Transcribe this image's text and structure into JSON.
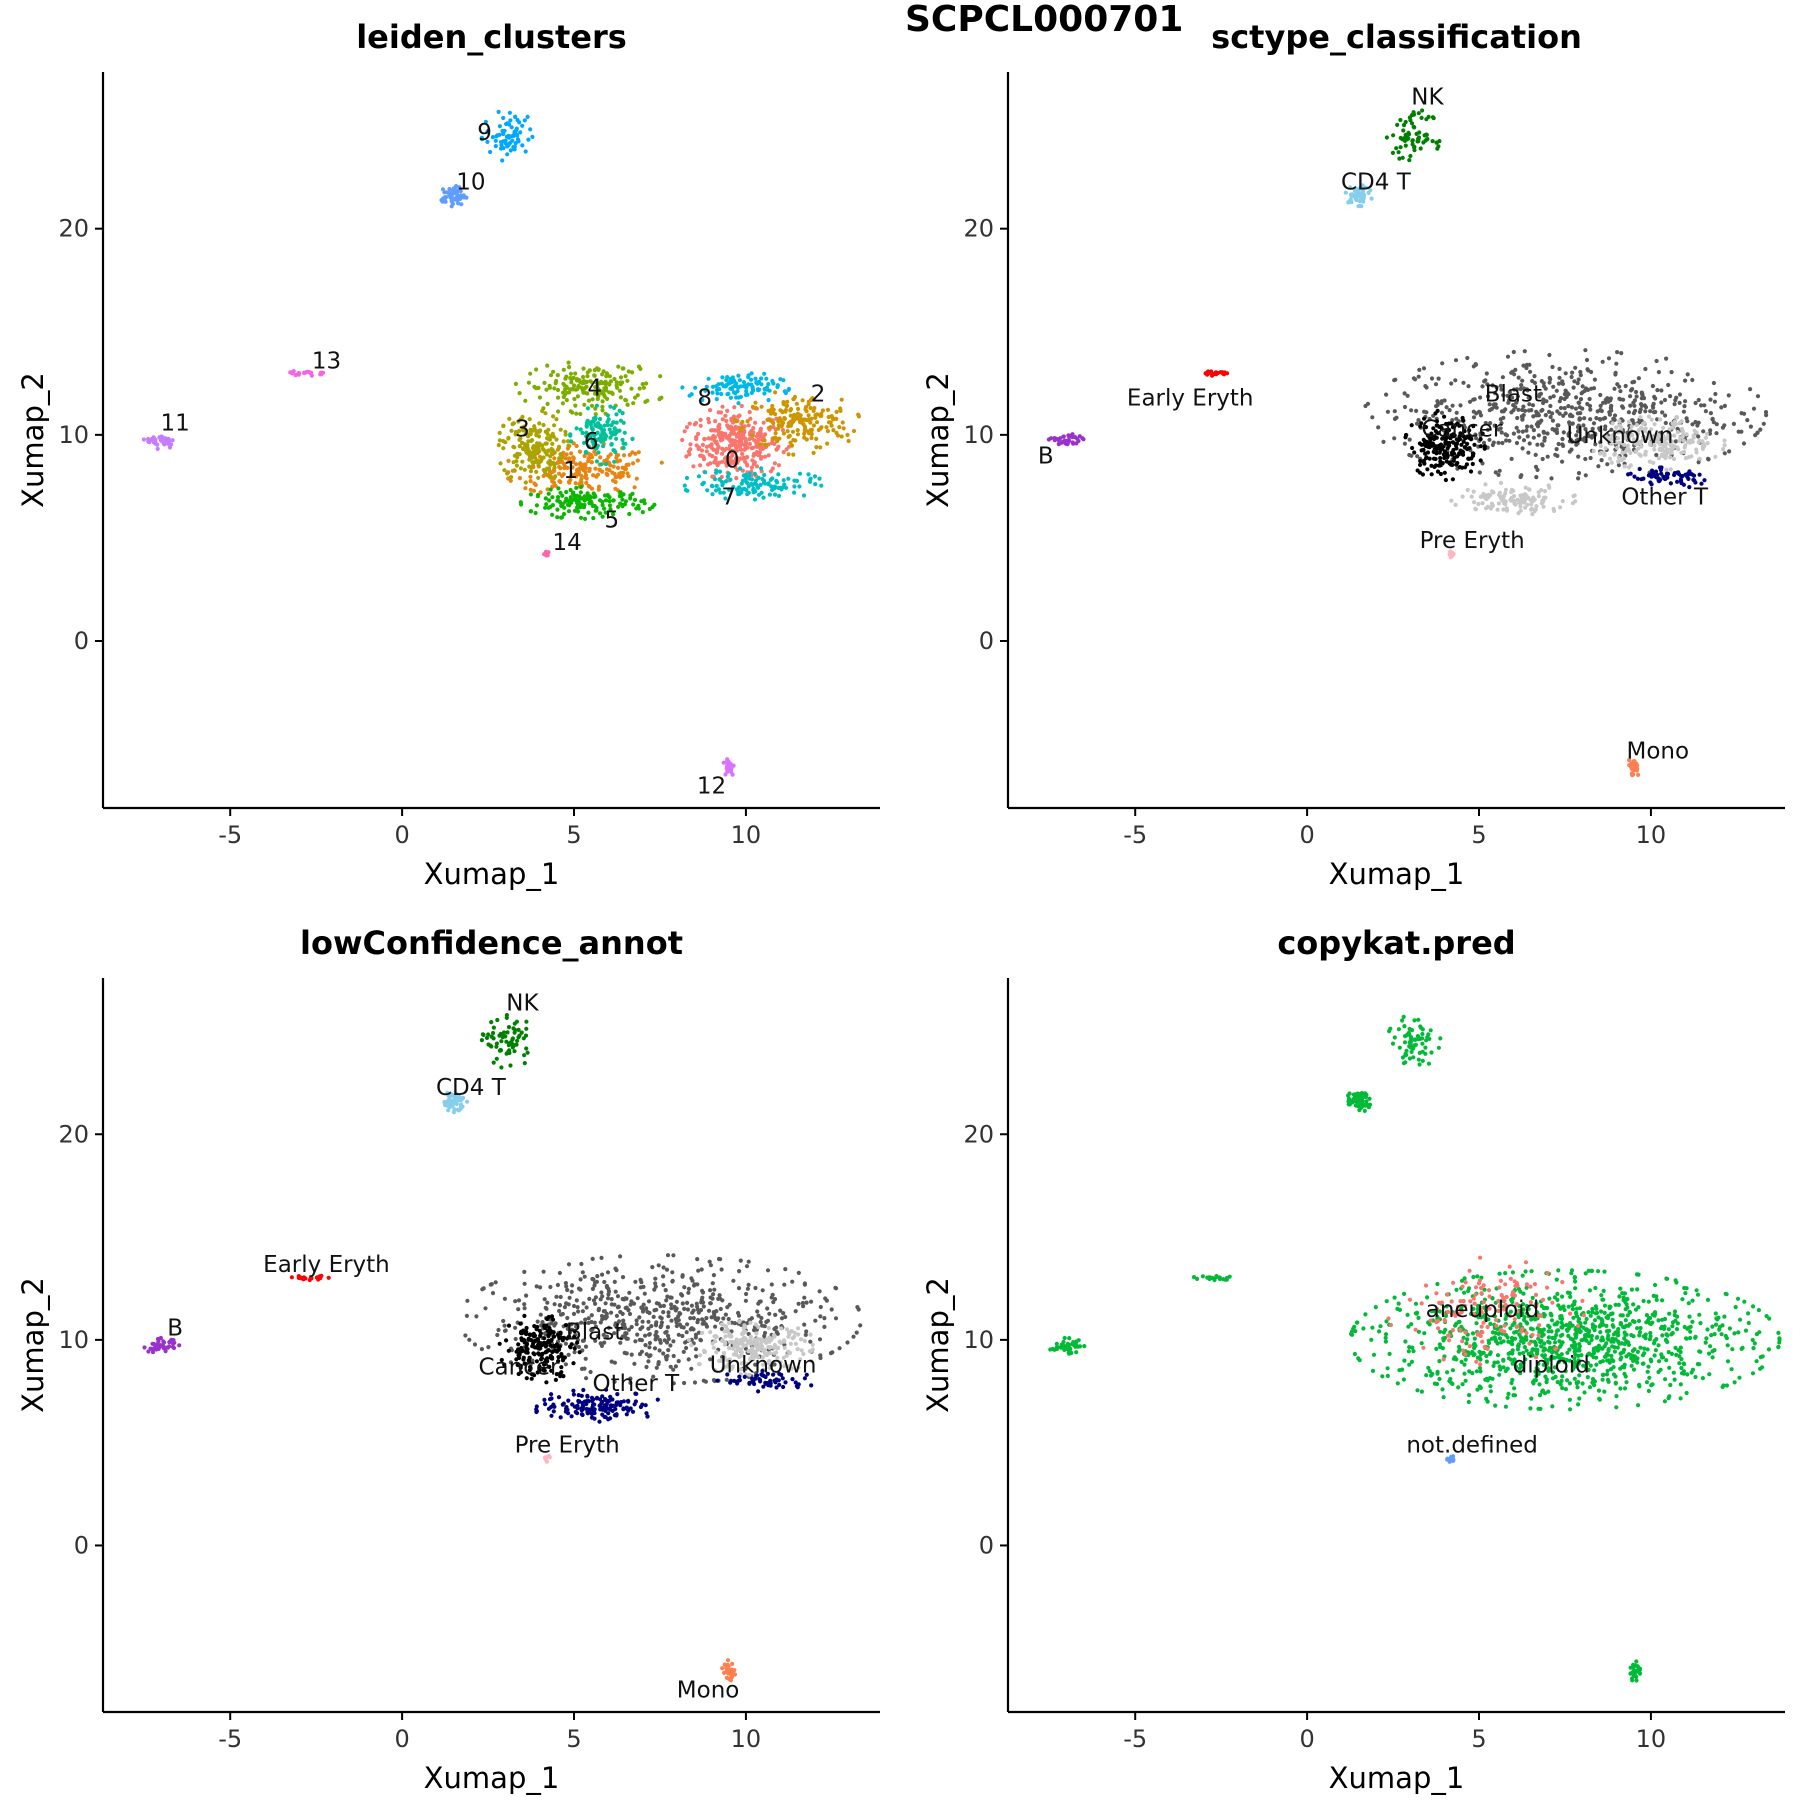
{
  "figure_title": "SCPCL000701",
  "chart_data": [
    {
      "type": "scatter",
      "title": "leiden_clusters",
      "xlabel": "Xumap_1",
      "ylabel": "Xumap_2",
      "xlim": [
        -8.7,
        13.9
      ],
      "ylim": [
        -8.1,
        27.6
      ],
      "xticks": [
        "-5",
        "0",
        "5",
        "10"
      ],
      "yticks": [
        "0",
        "10",
        "20"
      ],
      "clusters": [
        {
          "label": "0",
          "color": "#F8766D",
          "cx": 9.7,
          "cy": 9.6,
          "rx": 1.2,
          "ry": 1.4,
          "n": 320,
          "lx": 9.6,
          "ly": 8.8
        },
        {
          "label": "1",
          "color": "#E68613",
          "cx": 5.3,
          "cy": 8.3,
          "rx": 1.8,
          "ry": 1.0,
          "n": 200,
          "lx": 4.9,
          "ly": 8.3
        },
        {
          "label": "2",
          "color": "#CD9600",
          "cx": 11.5,
          "cy": 10.6,
          "rx": 1.4,
          "ry": 1.2,
          "n": 180,
          "lx": 12.1,
          "ly": 12.0
        },
        {
          "label": "3",
          "color": "#ABA300",
          "cx": 3.8,
          "cy": 9.4,
          "rx": 0.8,
          "ry": 1.4,
          "n": 180,
          "lx": 3.5,
          "ly": 10.3
        },
        {
          "label": "4",
          "color": "#7CAE00",
          "cx": 5.5,
          "cy": 12.3,
          "rx": 1.7,
          "ry": 1.0,
          "n": 180,
          "lx": 5.6,
          "ly": 12.3
        },
        {
          "label": "5",
          "color": "#0CB702",
          "cx": 5.4,
          "cy": 6.7,
          "rx": 1.5,
          "ry": 0.6,
          "n": 150,
          "lx": 6.1,
          "ly": 5.9
        },
        {
          "label": "6",
          "color": "#00C19A",
          "cx": 5.8,
          "cy": 10.0,
          "rx": 0.7,
          "ry": 1.1,
          "n": 120,
          "lx": 5.5,
          "ly": 9.7
        },
        {
          "label": "7",
          "color": "#00BFC4",
          "cx": 10.2,
          "cy": 7.6,
          "rx": 1.6,
          "ry": 0.6,
          "n": 120,
          "lx": 9.5,
          "ly": 7.0
        },
        {
          "label": "8",
          "color": "#00B8E7",
          "cx": 9.7,
          "cy": 12.3,
          "rx": 1.2,
          "ry": 0.6,
          "n": 100,
          "lx": 8.8,
          "ly": 11.8
        },
        {
          "label": "9",
          "color": "#00A9FF",
          "cx": 3.1,
          "cy": 24.5,
          "rx": 0.6,
          "ry": 1.0,
          "n": 70,
          "lx": 2.4,
          "ly": 24.7
        },
        {
          "label": "10",
          "color": "#619CFF",
          "cx": 1.5,
          "cy": 21.6,
          "rx": 0.3,
          "ry": 0.4,
          "n": 60,
          "lx": 2.0,
          "ly": 22.3
        },
        {
          "label": "11",
          "color": "#C77CFF",
          "cx": -7.0,
          "cy": 9.7,
          "rx": 0.4,
          "ry": 0.3,
          "n": 40,
          "lx": -6.6,
          "ly": 10.6
        },
        {
          "label": "12",
          "color": "#DB72FB",
          "cx": 9.5,
          "cy": -6.1,
          "rx": 0.15,
          "ry": 0.4,
          "n": 25,
          "lx": 9.0,
          "ly": -7.0
        },
        {
          "label": "13",
          "color": "#F564E3",
          "cx": -2.7,
          "cy": 13.0,
          "rx": 0.5,
          "ry": 0.1,
          "n": 20,
          "lx": -2.2,
          "ly": 13.6
        },
        {
          "label": "14",
          "color": "#FF64B0",
          "cx": 4.2,
          "cy": 4.2,
          "rx": 0.1,
          "ry": 0.15,
          "n": 10,
          "lx": 4.8,
          "ly": 4.8
        }
      ]
    },
    {
      "type": "scatter",
      "title": "sctype_classification",
      "xlabel": "Xumap_1",
      "ylabel": "Xumap_2",
      "xlim": [
        -8.7,
        13.9
      ],
      "ylim": [
        -8.1,
        27.6
      ],
      "xticks": [
        "-5",
        "0",
        "5",
        "10"
      ],
      "yticks": [
        "0",
        "10",
        "20"
      ],
      "clusters": [
        {
          "label": "Blast",
          "color": "#595959",
          "cx": 7.5,
          "cy": 11.0,
          "rx": 4.5,
          "ry": 2.4,
          "n": 650,
          "lx": 6.0,
          "ly": 12.0
        },
        {
          "label": "Cancer",
          "color": "#000000",
          "cx": 4.0,
          "cy": 9.5,
          "rx": 0.9,
          "ry": 1.3,
          "n": 200,
          "lx": 4.5,
          "ly": 10.3
        },
        {
          "label": "Unknown",
          "color": "#C8C8C8",
          "cx": 10.2,
          "cy": 9.6,
          "rx": 1.5,
          "ry": 1.0,
          "n": 220,
          "lx": 9.1,
          "ly": 10.0
        },
        {
          "label": "Other T",
          "color": "#000080",
          "cx": 10.5,
          "cy": 7.9,
          "rx": 1.2,
          "ry": 0.4,
          "n": 70,
          "lx": 10.4,
          "ly": 7.0
        },
        {
          "label": "",
          "color": "#C8C8C8",
          "cx": 6.0,
          "cy": 6.9,
          "rx": 1.4,
          "ry": 0.6,
          "n": 120,
          "lx": 0,
          "ly": 0
        },
        {
          "label": "NK",
          "color": "#008000",
          "cx": 3.1,
          "cy": 24.5,
          "rx": 0.6,
          "ry": 1.0,
          "n": 70,
          "lx": 3.5,
          "ly": 26.4
        },
        {
          "label": "CD4 T",
          "color": "#87CEEB",
          "cx": 1.5,
          "cy": 21.6,
          "rx": 0.3,
          "ry": 0.4,
          "n": 60,
          "lx": 2.0,
          "ly": 22.3
        },
        {
          "label": "Early Eryth",
          "color": "#FF0000",
          "cx": -2.7,
          "cy": 13.0,
          "rx": 0.5,
          "ry": 0.1,
          "n": 20,
          "lx": -3.4,
          "ly": 11.8
        },
        {
          "label": "B",
          "color": "#9932CC",
          "cx": -7.0,
          "cy": 9.7,
          "rx": 0.4,
          "ry": 0.3,
          "n": 40,
          "lx": -7.6,
          "ly": 9.0
        },
        {
          "label": "Pre Eryth",
          "color": "#FFB6C1",
          "cx": 4.2,
          "cy": 4.2,
          "rx": 0.1,
          "ry": 0.15,
          "n": 10,
          "lx": 4.8,
          "ly": 4.9
        },
        {
          "label": "Mono",
          "color": "#FF7F50",
          "cx": 9.5,
          "cy": -6.1,
          "rx": 0.15,
          "ry": 0.4,
          "n": 25,
          "lx": 10.2,
          "ly": -5.3
        }
      ]
    },
    {
      "type": "scatter",
      "title": "lowConfidence_annot",
      "xlabel": "Xumap_1",
      "ylabel": "Xumap_2",
      "xlim": [
        -8.7,
        13.9
      ],
      "ylim": [
        -8.1,
        27.6
      ],
      "xticks": [
        "-5",
        "0",
        "5",
        "10"
      ],
      "yticks": [
        "0",
        "10",
        "20"
      ],
      "clusters": [
        {
          "label": "Blast",
          "color": "#595959",
          "cx": 7.5,
          "cy": 11.0,
          "rx": 4.5,
          "ry": 2.4,
          "n": 650,
          "lx": 5.6,
          "ly": 10.4
        },
        {
          "label": "Cancer",
          "color": "#000000",
          "cx": 4.0,
          "cy": 9.6,
          "rx": 0.9,
          "ry": 1.3,
          "n": 200,
          "lx": 3.4,
          "ly": 8.7
        },
        {
          "label": "Unknown",
          "color": "#C8C8C8",
          "cx": 10.2,
          "cy": 9.6,
          "rx": 1.5,
          "ry": 1.0,
          "n": 220,
          "lx": 10.5,
          "ly": 8.8
        },
        {
          "label": "Other T",
          "color": "#000080",
          "cx": 5.7,
          "cy": 6.8,
          "rx": 1.5,
          "ry": 0.6,
          "n": 150,
          "lx": 6.8,
          "ly": 7.9
        },
        {
          "label": "",
          "color": "#000080",
          "cx": 10.6,
          "cy": 8.0,
          "rx": 1.1,
          "ry": 0.4,
          "n": 60,
          "lx": 0,
          "ly": 0
        },
        {
          "label": "NK",
          "color": "#008000",
          "cx": 3.1,
          "cy": 24.5,
          "rx": 0.6,
          "ry": 1.0,
          "n": 70,
          "lx": 3.5,
          "ly": 26.4
        },
        {
          "label": "CD4 T",
          "color": "#87CEEB",
          "cx": 1.5,
          "cy": 21.6,
          "rx": 0.3,
          "ry": 0.4,
          "n": 60,
          "lx": 2.0,
          "ly": 22.3
        },
        {
          "label": "Early Eryth",
          "color": "#FF0000",
          "cx": -2.7,
          "cy": 13.0,
          "rx": 0.5,
          "ry": 0.1,
          "n": 20,
          "lx": -2.2,
          "ly": 13.7
        },
        {
          "label": "B",
          "color": "#9932CC",
          "cx": -7.0,
          "cy": 9.7,
          "rx": 0.4,
          "ry": 0.3,
          "n": 40,
          "lx": -6.6,
          "ly": 10.6
        },
        {
          "label": "Pre Eryth",
          "color": "#FFB6C1",
          "cx": 4.2,
          "cy": 4.2,
          "rx": 0.1,
          "ry": 0.15,
          "n": 10,
          "lx": 4.8,
          "ly": 4.9
        },
        {
          "label": "Mono",
          "color": "#FF7F50",
          "cx": 9.5,
          "cy": -6.1,
          "rx": 0.15,
          "ry": 0.4,
          "n": 25,
          "lx": 8.9,
          "ly": -7.0
        }
      ]
    },
    {
      "type": "scatter",
      "title": "copykat.pred",
      "xlabel": "Xumap_1",
      "ylabel": "Xumap_2",
      "xlim": [
        -8.7,
        13.9
      ],
      "ylim": [
        -8.1,
        27.6
      ],
      "xticks": [
        "-5",
        "0",
        "5",
        "10"
      ],
      "yticks": [
        "0",
        "10",
        "20"
      ],
      "clusters": [
        {
          "label": "diploid",
          "color": "#00BA38",
          "cx": 7.5,
          "cy": 10.0,
          "rx": 4.8,
          "ry": 2.6,
          "n": 1100,
          "lx": 7.1,
          "ly": 8.8
        },
        {
          "label": "aneuploid",
          "color": "#F8766D",
          "cx": 5.2,
          "cy": 11.4,
          "rx": 2.2,
          "ry": 2.0,
          "n": 140,
          "lx": 5.1,
          "ly": 11.5
        },
        {
          "label": "",
          "color": "#00BA38",
          "cx": 3.1,
          "cy": 24.5,
          "rx": 0.6,
          "ry": 1.0,
          "n": 70,
          "lx": 0,
          "ly": 0
        },
        {
          "label": "",
          "color": "#00BA38",
          "cx": 1.5,
          "cy": 21.6,
          "rx": 0.3,
          "ry": 0.4,
          "n": 60,
          "lx": 0,
          "ly": 0
        },
        {
          "label": "",
          "color": "#00BA38",
          "cx": -2.7,
          "cy": 13.0,
          "rx": 0.5,
          "ry": 0.1,
          "n": 20,
          "lx": 0,
          "ly": 0
        },
        {
          "label": "",
          "color": "#00BA38",
          "cx": -7.0,
          "cy": 9.7,
          "rx": 0.4,
          "ry": 0.3,
          "n": 40,
          "lx": 0,
          "ly": 0
        },
        {
          "label": "",
          "color": "#00BA38",
          "cx": 9.5,
          "cy": -6.1,
          "rx": 0.15,
          "ry": 0.4,
          "n": 25,
          "lx": 0,
          "ly": 0
        },
        {
          "label": "not.defined",
          "color": "#619CFF",
          "cx": 4.2,
          "cy": 4.2,
          "rx": 0.1,
          "ry": 0.15,
          "n": 10,
          "lx": 4.8,
          "ly": 4.9
        }
      ]
    }
  ]
}
